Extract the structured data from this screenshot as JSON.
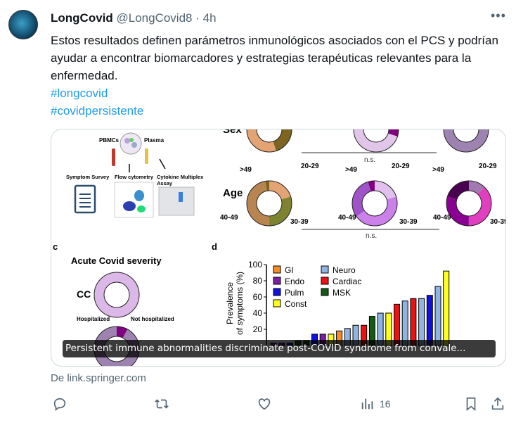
{
  "tweet": {
    "display_name": "LongCovid",
    "handle": "@LongCovid8",
    "separator": "·",
    "time": "4h",
    "text": "Estos resultados definen parámetros inmunológicos asociados con el PCS y podrían ayudar a encontrar biomarcadores y estrategias terapéuticas relevantes para la enfermedad.",
    "hashtags": [
      "#longcovid",
      "#covidpersistente"
    ],
    "more_icon": "more-horizontal-icon"
  },
  "card": {
    "caption": "Persistent immune abnormalities discriminate post-COVID syndrome from convale...",
    "source": "De link.springer.com",
    "figure": {
      "schematic": {
        "pbmcs": "PBMCs",
        "plasma": "Plasma",
        "survey": "Symptom Survey",
        "flow": "Flow cytometry",
        "cytokine": "Cytokine Multiplex",
        "assay": "Assay"
      },
      "sex_label": "Sex",
      "age_label": "Age",
      "ns": "n.s.",
      "age_labels": [
        ">49",
        "20-29",
        "40-49",
        "30-39"
      ],
      "panel_c": "c",
      "panel_d": "d",
      "severity_title": "Acute Covid severity",
      "cc": "CC",
      "hospitalized": "Hospitalized",
      "not_hospitalized": "Not hospitalized"
    }
  },
  "chart_data": {
    "type": "bar",
    "ylabel": "Prevalence of symptoms (%)",
    "ylim": [
      0,
      100
    ],
    "yticks": [
      20,
      40,
      60,
      80,
      100
    ],
    "legend": [
      {
        "name": "GI",
        "color": "#f28c28"
      },
      {
        "name": "Neuro",
        "color": "#8fb4e3"
      },
      {
        "name": "Endo",
        "color": "#7b1fa2"
      },
      {
        "name": "Cardiac",
        "color": "#ee1111"
      },
      {
        "name": "Pulm",
        "color": "#1010e0"
      },
      {
        "name": "MSK",
        "color": "#145a14"
      },
      {
        "name": "Const",
        "color": "#ffff22"
      }
    ],
    "values": [
      3,
      3,
      3,
      6,
      6,
      14,
      14,
      14,
      18,
      21,
      25,
      25,
      36,
      40,
      40,
      51,
      55,
      58,
      58,
      62,
      73,
      92
    ],
    "groups": [
      "Endo",
      "Endo",
      "Pulm",
      "MSK",
      "MSK",
      "Pulm",
      "Endo",
      "Const",
      "GI",
      "Neuro",
      "Neuro",
      "Cardiac",
      "MSK",
      "Neuro",
      "Const",
      "Cardiac",
      "Neuro",
      "Cardiac",
      "Neuro",
      "Pulm",
      "Neuro",
      "Const"
    ]
  },
  "actions": {
    "reply_icon": "reply-icon",
    "retweet_icon": "retweet-icon",
    "like_icon": "heart-icon",
    "views_icon": "views-chart-icon",
    "views": "16",
    "bookmark_icon": "bookmark-icon",
    "share_icon": "share-icon"
  }
}
